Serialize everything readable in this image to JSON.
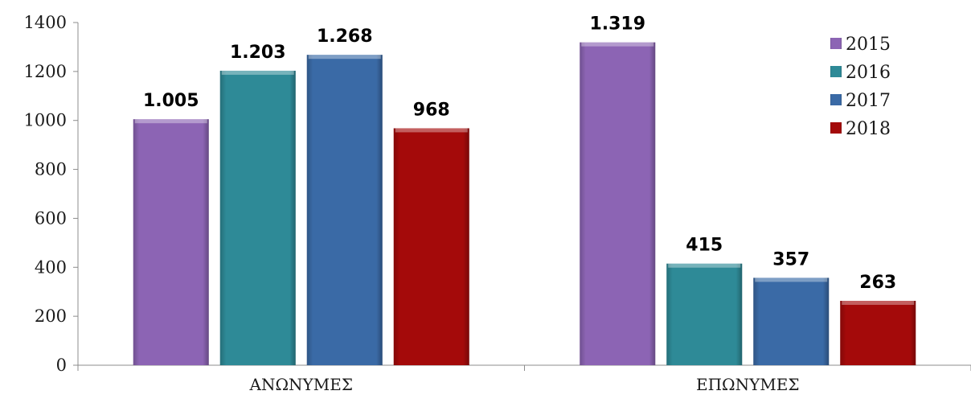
{
  "chart_data": {
    "type": "bar",
    "categories": [
      "ΑΝΩΝΥΜΕΣ",
      "ΕΠΩΝΥΜΕΣ"
    ],
    "series": [
      {
        "name": "2015",
        "color": "#8c64b4",
        "values": [
          1005,
          1319
        ],
        "labels": [
          "1.005",
          "1.319"
        ]
      },
      {
        "name": "2016",
        "color": "#2e8a97",
        "values": [
          1203,
          415
        ],
        "labels": [
          "1.203",
          "415"
        ]
      },
      {
        "name": "2017",
        "color": "#3a6aa6",
        "values": [
          1268,
          357
        ],
        "labels": [
          "1.268",
          "357"
        ]
      },
      {
        "name": "2018",
        "color": "#a40a0a",
        "values": [
          968,
          263
        ],
        "labels": [
          "968",
          "263"
        ]
      }
    ],
    "ylim": [
      0,
      1400
    ],
    "yticks": [
      0,
      200,
      400,
      600,
      800,
      1000,
      1200,
      1400
    ],
    "grid": false,
    "legend_position": "top-right"
  }
}
